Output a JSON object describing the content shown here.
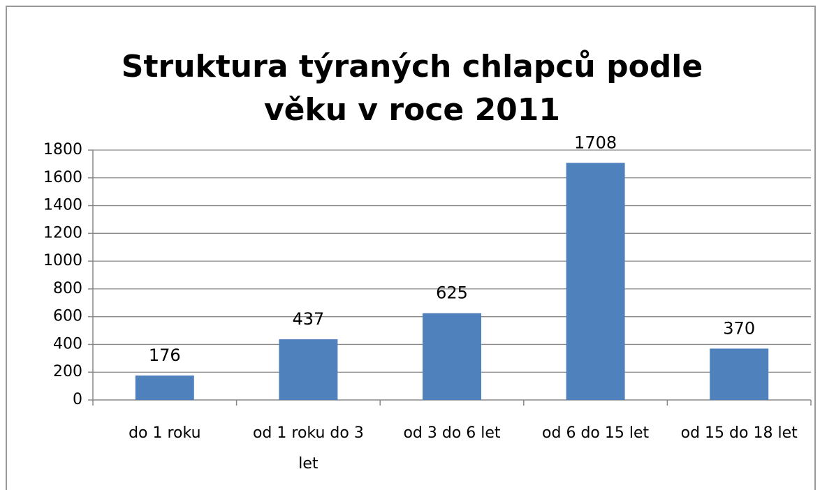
{
  "chart_data": {
    "type": "bar",
    "title": "Struktura týraných chlapců podle věku v roce 2011",
    "categories": [
      "do 1 roku",
      "od 1 roku do 3 let",
      "od 3 do 6 let",
      "od 6 do 15 let",
      "od 15 do 18 let"
    ],
    "values": [
      176,
      437,
      625,
      1708,
      370
    ],
    "color": "#4f81bd",
    "ylim": [
      0,
      1800
    ],
    "yticks": [
      0,
      200,
      400,
      600,
      800,
      1000,
      1200,
      1400,
      1600,
      1800
    ],
    "grid": true
  }
}
